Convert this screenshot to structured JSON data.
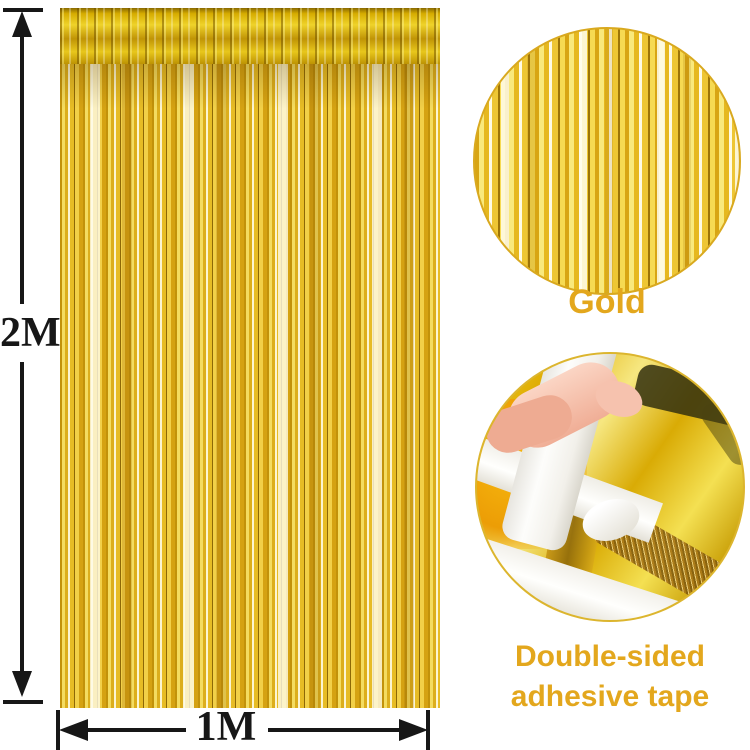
{
  "canvas": {
    "background": "#FFFFFF"
  },
  "dimensions": {
    "height_label": "2M",
    "width_label": "1M"
  },
  "callouts": {
    "color_label": "Gold",
    "tape_label_line1": "Double-sided",
    "tape_label_line2": "adhesive tape"
  },
  "colors": {
    "accent_text_gold": "#E3A71D",
    "dimension_marks": "#171717",
    "foil_gold": "#E6BC22",
    "foil_deep_gold": "#C2920A",
    "foil_highlight": "#FCF5D2",
    "circle_border_gold": "#D9A91F",
    "tape_white": "#F7F5EF",
    "skin_tone": "#F3BBA5"
  }
}
